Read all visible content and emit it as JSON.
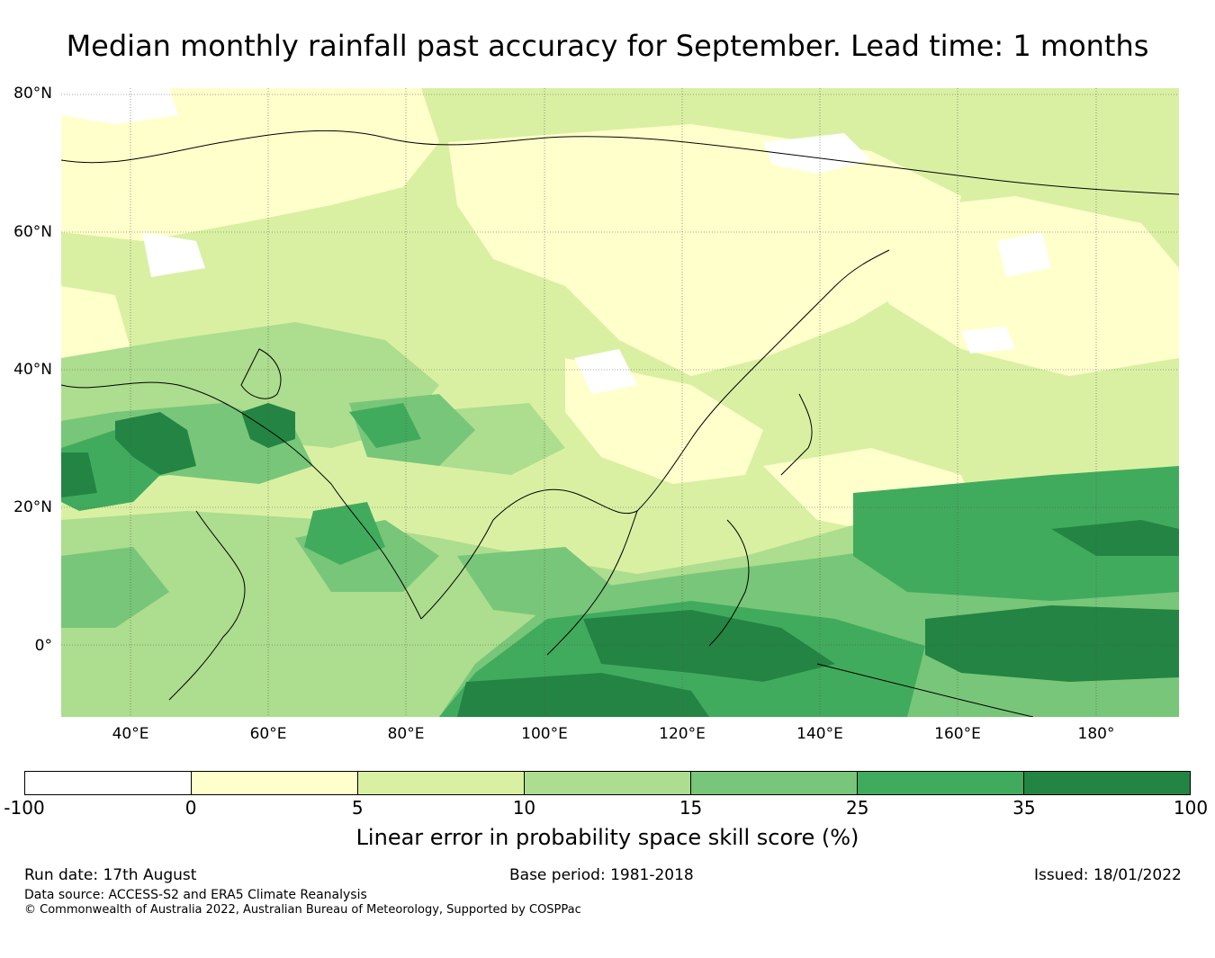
{
  "title": "Median monthly rainfall past accuracy for September. Lead time: 1 months",
  "map": {
    "lat_labels": [
      "80°N",
      "60°N",
      "40°N",
      "20°N",
      "0°"
    ],
    "lon_labels": [
      "40°E",
      "60°E",
      "80°E",
      "100°E",
      "120°E",
      "140°E",
      "160°E",
      "180°"
    ]
  },
  "colorbar": {
    "ticks": [
      "-100",
      "0",
      "5",
      "10",
      "15",
      "25",
      "35",
      "100"
    ],
    "colors": [
      "#ffffff",
      "#ffffcc",
      "#d9f0a3",
      "#addd8e",
      "#78c679",
      "#41ab5d",
      "#238443"
    ],
    "label": "Linear error in probability space skill score (%)"
  },
  "footer": {
    "run_date": "Run date: 17th August",
    "base_period": "Base period: 1981-2018",
    "issued": "Issued: 18/01/2022",
    "data_source": "Data source: ACCESS-S2 and ERA5 Climate Reanalysis",
    "copyright": "© Commonwealth of Australia 2022, Australian Bureau of Meteorology, Supported by COSPPac"
  }
}
